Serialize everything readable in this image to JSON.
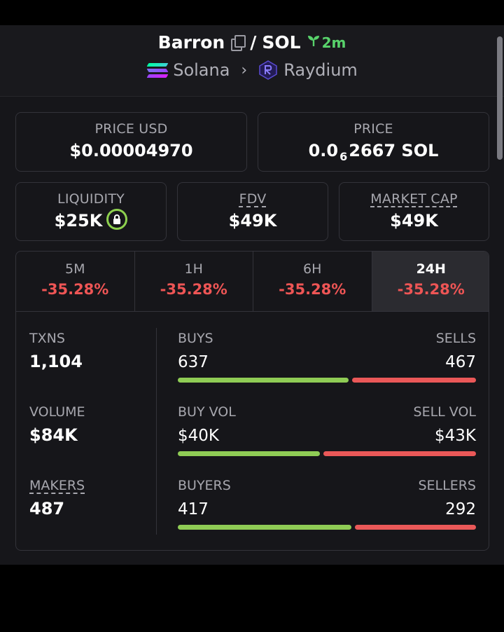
{
  "header": {
    "token": "Barron",
    "separator": "/",
    "quote": "SOL",
    "age": "2m",
    "chain": "Solana",
    "dex": "Raydium"
  },
  "price_usd": {
    "label": "PRICE USD",
    "value": "$0.00004970"
  },
  "price": {
    "label": "PRICE",
    "value_prefix": "0.0",
    "value_sub": "6",
    "value_rest": "2667 SOL"
  },
  "liquidity": {
    "label": "LIQUIDITY",
    "value": "$25K"
  },
  "fdv": {
    "label": "FDV",
    "value": "$49K"
  },
  "market_cap": {
    "label": "MARKET CAP",
    "value": "$49K"
  },
  "tabs": [
    {
      "label": "5M",
      "change": "-35.28%"
    },
    {
      "label": "1H",
      "change": "-35.28%"
    },
    {
      "label": "6H",
      "change": "-35.28%"
    },
    {
      "label": "24H",
      "change": "-35.28%"
    }
  ],
  "active_tab": "24H",
  "stats": {
    "txns": {
      "label": "TXNS",
      "value": "1,104"
    },
    "volume": {
      "label": "VOLUME",
      "value": "$84K"
    },
    "makers": {
      "label": "MAKERS",
      "value": "487"
    },
    "buys": {
      "label": "BUYS",
      "value": "637",
      "share": 0.577
    },
    "sells": {
      "label": "SELLS",
      "value": "467"
    },
    "buy_vol": {
      "label": "BUY VOL",
      "value": "$40K",
      "share": 0.482
    },
    "sell_vol": {
      "label": "SELL VOL",
      "value": "$43K"
    },
    "buyers": {
      "label": "BUYERS",
      "value": "417",
      "share": 0.588
    },
    "sellers": {
      "label": "SELLERS",
      "value": "292"
    }
  },
  "colors": {
    "positive": "#8fcc55",
    "negative": "#ea5858",
    "age_green": "#58d26b"
  }
}
